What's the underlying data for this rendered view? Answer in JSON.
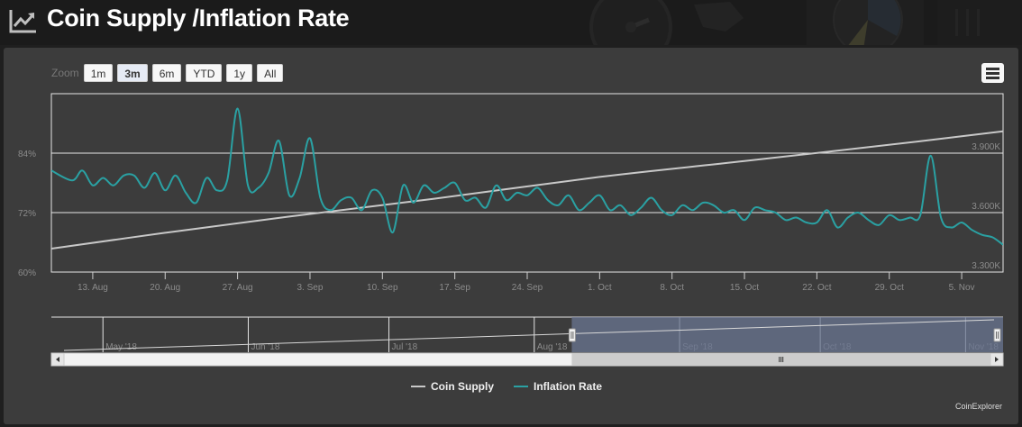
{
  "page": {
    "title": "Coin Supply /Inflation Rate",
    "title_icon": "line-chart-icon"
  },
  "toolbar": {
    "zoom_label": "Zoom",
    "buttons": [
      "1m",
      "3m",
      "6m",
      "YTD",
      "1y",
      "All"
    ],
    "selected": "3m",
    "menu_icon": "hamburger-menu-icon"
  },
  "colors": {
    "supply": "#c8c8c8",
    "inflation": "#2aa1a3",
    "panel": "#3c3c3c",
    "navigator_mask": "#6a7592"
  },
  "chart_data": {
    "type": "line",
    "x_tick_labels": [
      "13. Aug",
      "20. Aug",
      "27. Aug",
      "3. Sep",
      "10. Sep",
      "17. Sep",
      "24. Sep",
      "1. Oct",
      "8. Oct",
      "15. Oct",
      "22. Oct",
      "29. Oct",
      "5. Nov"
    ],
    "xlim": [
      "2018-08-09",
      "2018-11-09"
    ],
    "y_left": {
      "title": "",
      "ticks": [
        "60%",
        "72%",
        "84%"
      ],
      "lim": [
        60,
        96
      ]
    },
    "y_right": {
      "title": "",
      "ticks": [
        "3.300K",
        "3.600K",
        "3.900K"
      ],
      "lim": [
        3300,
        3900
      ]
    },
    "grid": true,
    "legend_position": "bottom-center",
    "series": [
      {
        "name": "Coin Supply",
        "axis": "right",
        "x": [
          "2018-08-09",
          "2018-08-20",
          "2018-09-01",
          "2018-09-15",
          "2018-10-01",
          "2018-10-15",
          "2018-11-01",
          "2018-11-09"
        ],
        "values": [
          3418,
          3498,
          3580,
          3670,
          3780,
          3860,
          3960,
          4010
        ]
      },
      {
        "name": "Inflation Rate",
        "axis": "left",
        "x": [
          "2018-08-09",
          "2018-08-11",
          "2018-08-12",
          "2018-08-13",
          "2018-08-14",
          "2018-08-15",
          "2018-08-16",
          "2018-08-17",
          "2018-08-18",
          "2018-08-19",
          "2018-08-20",
          "2018-08-21",
          "2018-08-22",
          "2018-08-23",
          "2018-08-24",
          "2018-08-25",
          "2018-08-26",
          "2018-08-27",
          "2018-08-28",
          "2018-08-29",
          "2018-08-30",
          "2018-08-31",
          "2018-09-01",
          "2018-09-02",
          "2018-09-03",
          "2018-09-04",
          "2018-09-05",
          "2018-09-06",
          "2018-09-07",
          "2018-09-08",
          "2018-09-09",
          "2018-09-10",
          "2018-09-11",
          "2018-09-12",
          "2018-09-13",
          "2018-09-14",
          "2018-09-15",
          "2018-09-16",
          "2018-09-17",
          "2018-09-18",
          "2018-09-19",
          "2018-09-20",
          "2018-09-21",
          "2018-09-22",
          "2018-09-23",
          "2018-09-24",
          "2018-09-25",
          "2018-09-26",
          "2018-09-27",
          "2018-09-28",
          "2018-09-29",
          "2018-09-30",
          "2018-10-01",
          "2018-10-02",
          "2018-10-03",
          "2018-10-04",
          "2018-10-05",
          "2018-10-06",
          "2018-10-07",
          "2018-10-08",
          "2018-10-09",
          "2018-10-10",
          "2018-10-11",
          "2018-10-12",
          "2018-10-13",
          "2018-10-14",
          "2018-10-15",
          "2018-10-16",
          "2018-10-17",
          "2018-10-18",
          "2018-10-19",
          "2018-10-20",
          "2018-10-21",
          "2018-10-22",
          "2018-10-23",
          "2018-10-24",
          "2018-10-25",
          "2018-10-26",
          "2018-10-27",
          "2018-10-28",
          "2018-10-29",
          "2018-10-30",
          "2018-10-31",
          "2018-11-01",
          "2018-11-02",
          "2018-11-03",
          "2018-11-04",
          "2018-11-05",
          "2018-11-06",
          "2018-11-07",
          "2018-11-08",
          "2018-11-09"
        ],
        "values": [
          80.5,
          78.5,
          80.5,
          77.5,
          79.0,
          77.5,
          79.5,
          79.5,
          77.0,
          80.0,
          76.5,
          79.5,
          76.0,
          74.0,
          79.0,
          76.5,
          78.5,
          93.0,
          77.5,
          77.0,
          80.0,
          86.5,
          75.5,
          79.0,
          87.0,
          75.0,
          72.5,
          74.5,
          75.0,
          72.5,
          76.5,
          75.0,
          68.0,
          77.5,
          74.0,
          77.5,
          76.0,
          77.0,
          78.0,
          74.5,
          75.0,
          73.0,
          77.5,
          74.5,
          76.0,
          75.5,
          77.0,
          74.5,
          73.5,
          75.5,
          72.5,
          74.0,
          75.5,
          72.5,
          73.5,
          71.5,
          73.0,
          75.0,
          72.5,
          71.5,
          73.5,
          72.5,
          74.0,
          73.5,
          72.0,
          72.5,
          70.5,
          73.0,
          72.5,
          72.0,
          70.5,
          71.0,
          70.0,
          70.0,
          72.5,
          69.0,
          71.0,
          72.0,
          70.5,
          69.5,
          71.5,
          70.5,
          71.0,
          71.5,
          83.5,
          71.0,
          69.0,
          70.0,
          68.5,
          67.5,
          67.0,
          65.5
        ]
      }
    ],
    "navigator": {
      "tick_labels": [
        "May '18",
        "Jun '18",
        "Jul '18",
        "Aug '18",
        "Sep '18",
        "Oct '18",
        "Nov '18"
      ],
      "range_start": "2018-04-20",
      "range_end": "2018-11-09",
      "selected_from": "2018-08-09",
      "selected_to": "2018-11-09"
    }
  },
  "legend": {
    "items": [
      {
        "label": "Coin Supply",
        "color": "#c8c8c8"
      },
      {
        "label": "Inflation Rate",
        "color": "#2aa1a3"
      }
    ]
  },
  "credits": "CoinExplorer"
}
